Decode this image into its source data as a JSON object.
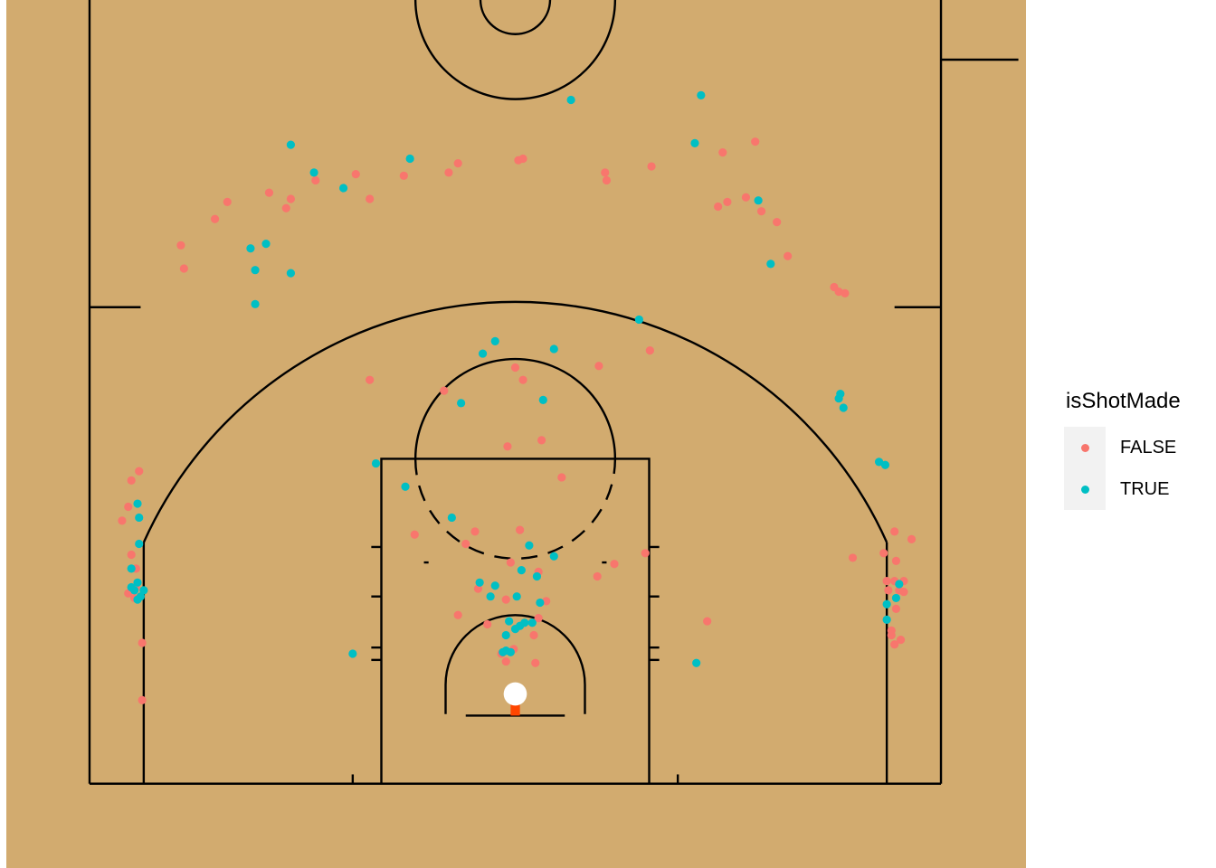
{
  "chart_data": {
    "type": "scatter",
    "title": "",
    "xlabel": "",
    "ylabel": "",
    "legend": {
      "title": "isShotMade",
      "position": "right",
      "entries": [
        {
          "label": "FALSE",
          "color": "#f8766d"
        },
        {
          "label": "TRUE",
          "color": "#00bfc4"
        }
      ]
    },
    "court": {
      "background": "#d2ab6f",
      "line_color": "#000000",
      "rim_color": "#ffffff",
      "backboard_color": "#ff4500"
    },
    "xlim": [
      -27.5,
      27.5
    ],
    "ylim": [
      -5.2,
      50
    ],
    "series": [
      {
        "name": "FALSE",
        "color": "#f8766d",
        "points": [
          [
            -21.6,
            29.0
          ],
          [
            -21.4,
            27.5
          ],
          [
            -19.4,
            30.7
          ],
          [
            -18.6,
            31.8
          ],
          [
            -15.9,
            32.4
          ],
          [
            -14.5,
            32.0
          ],
          [
            -14.8,
            31.4
          ],
          [
            -12.9,
            33.2
          ],
          [
            -10.3,
            33.6
          ],
          [
            -9.4,
            32.0
          ],
          [
            -7.2,
            33.5
          ],
          [
            -4.3,
            33.7
          ],
          [
            -3.7,
            34.3
          ],
          [
            0.2,
            34.5
          ],
          [
            0.5,
            34.6
          ],
          [
            5.8,
            33.7
          ],
          [
            5.9,
            33.2
          ],
          [
            8.8,
            34.1
          ],
          [
            13.4,
            35.0
          ],
          [
            15.5,
            35.7
          ],
          [
            13.1,
            31.5
          ],
          [
            13.7,
            31.8
          ],
          [
            14.9,
            32.1
          ],
          [
            15.9,
            31.2
          ],
          [
            16.9,
            30.5
          ],
          [
            17.6,
            28.3
          ],
          [
            20.6,
            26.3
          ],
          [
            20.9,
            26.0
          ],
          [
            21.3,
            25.9
          ],
          [
            -9.4,
            20.3
          ],
          [
            -4.6,
            19.6
          ],
          [
            0.0,
            21.1
          ],
          [
            0.5,
            20.3
          ],
          [
            5.4,
            21.2
          ],
          [
            8.7,
            22.2
          ],
          [
            -0.5,
            16.0
          ],
          [
            1.7,
            16.4
          ],
          [
            3.0,
            14.0
          ],
          [
            -6.5,
            10.3
          ],
          [
            -2.6,
            10.5
          ],
          [
            -3.2,
            9.7
          ],
          [
            0.3,
            10.6
          ],
          [
            8.4,
            9.1
          ],
          [
            6.4,
            8.4
          ],
          [
            -0.3,
            8.5
          ],
          [
            1.5,
            7.9
          ],
          [
            5.3,
            7.6
          ],
          [
            -2.4,
            6.8
          ],
          [
            2.0,
            6.0
          ],
          [
            -3.7,
            5.1
          ],
          [
            -1.8,
            4.5
          ],
          [
            -0.6,
            6.1
          ],
          [
            1.5,
            4.9
          ],
          [
            1.2,
            3.8
          ],
          [
            -0.1,
            2.9
          ],
          [
            -0.9,
            2.6
          ],
          [
            -0.6,
            2.1
          ],
          [
            1.3,
            2.0
          ],
          [
            12.4,
            4.7
          ],
          [
            21.8,
            8.8
          ],
          [
            -24.8,
            13.8
          ],
          [
            -24.3,
            14.4
          ],
          [
            -25.0,
            12.1
          ],
          [
            -25.4,
            11.2
          ],
          [
            -24.8,
            9.0
          ],
          [
            -24.5,
            8.1
          ],
          [
            -24.5,
            6.9
          ],
          [
            -25.0,
            6.5
          ],
          [
            -24.6,
            6.2
          ],
          [
            -24.1,
            3.3
          ],
          [
            -24.1,
            -0.4
          ],
          [
            24.5,
            10.5
          ],
          [
            25.6,
            10.0
          ],
          [
            23.8,
            9.1
          ],
          [
            24.6,
            8.6
          ],
          [
            24.0,
            7.3
          ],
          [
            24.5,
            7.3
          ],
          [
            25.1,
            7.3
          ],
          [
            24.1,
            6.7
          ],
          [
            24.8,
            6.7
          ],
          [
            25.1,
            6.6
          ],
          [
            24.6,
            5.5
          ],
          [
            24.3,
            4.1
          ],
          [
            24.3,
            3.8
          ],
          [
            24.5,
            3.2
          ],
          [
            24.9,
            3.5
          ]
        ]
      },
      {
        "name": "TRUE",
        "color": "#00bfc4",
        "points": [
          [
            -14.5,
            35.5
          ],
          [
            -13.0,
            33.7
          ],
          [
            -11.1,
            32.7
          ],
          [
            -6.8,
            34.6
          ],
          [
            3.6,
            38.4
          ],
          [
            11.6,
            35.6
          ],
          [
            12.0,
            38.7
          ],
          [
            15.7,
            31.9
          ],
          [
            16.5,
            27.8
          ],
          [
            8.0,
            24.2
          ],
          [
            -16.1,
            29.1
          ],
          [
            -17.1,
            28.8
          ],
          [
            -16.8,
            27.4
          ],
          [
            -14.5,
            27.2
          ],
          [
            -16.8,
            25.2
          ],
          [
            -2.1,
            22.0
          ],
          [
            -1.3,
            22.8
          ],
          [
            2.5,
            22.3
          ],
          [
            -3.5,
            18.8
          ],
          [
            1.8,
            19.0
          ],
          [
            -9.0,
            14.9
          ],
          [
            -7.1,
            13.4
          ],
          [
            -4.1,
            11.4
          ],
          [
            0.9,
            9.6
          ],
          [
            2.5,
            8.9
          ],
          [
            0.4,
            8.0
          ],
          [
            1.4,
            7.6
          ],
          [
            -2.3,
            7.2
          ],
          [
            -1.3,
            7.0
          ],
          [
            -1.6,
            6.3
          ],
          [
            0.1,
            6.3
          ],
          [
            1.6,
            5.9
          ],
          [
            -0.4,
            4.7
          ],
          [
            0.3,
            4.4
          ],
          [
            0.6,
            4.6
          ],
          [
            1.1,
            4.6
          ],
          [
            0.0,
            4.2
          ],
          [
            -0.6,
            3.8
          ],
          [
            -0.6,
            2.8
          ],
          [
            -0.8,
            2.7
          ],
          [
            -0.3,
            2.7
          ],
          [
            -10.5,
            2.6
          ],
          [
            11.7,
            2.0
          ],
          [
            -24.4,
            12.3
          ],
          [
            -24.3,
            11.4
          ],
          [
            -24.3,
            9.7
          ],
          [
            -24.8,
            8.1
          ],
          [
            -24.4,
            7.2
          ],
          [
            -24.6,
            6.7
          ],
          [
            -24.0,
            6.7
          ],
          [
            -24.8,
            6.9
          ],
          [
            -24.2,
            6.3
          ],
          [
            -24.4,
            6.1
          ],
          [
            20.9,
            19.1
          ],
          [
            21.0,
            19.4
          ],
          [
            21.2,
            18.5
          ],
          [
            23.5,
            15.0
          ],
          [
            23.9,
            14.8
          ],
          [
            24.8,
            7.1
          ],
          [
            24.6,
            6.2
          ],
          [
            24.0,
            5.8
          ],
          [
            24.0,
            4.8
          ]
        ]
      }
    ]
  }
}
